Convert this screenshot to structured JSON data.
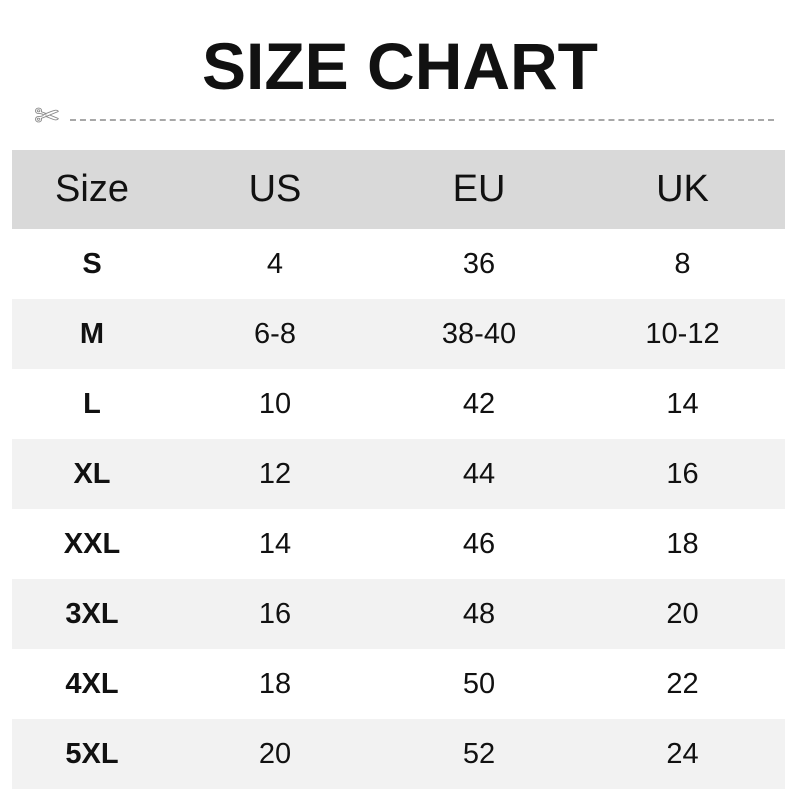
{
  "title": "SIZE CHART",
  "icons": {
    "cut": "scissors-icon"
  },
  "colors": {
    "header_bg": "#d9d9d9",
    "alt_row_bg": "#f2f2f2",
    "dash": "#a8a8a8"
  },
  "table": {
    "headers": [
      "Size",
      "US",
      "EU",
      "UK"
    ],
    "rows": [
      [
        "S",
        "4",
        "36",
        "8"
      ],
      [
        "M",
        "6-8",
        "38-40",
        "10-12"
      ],
      [
        "L",
        "10",
        "42",
        "14"
      ],
      [
        "XL",
        "12",
        "44",
        "16"
      ],
      [
        "XXL",
        "14",
        "46",
        "18"
      ],
      [
        "3XL",
        "16",
        "48",
        "20"
      ],
      [
        "4XL",
        "18",
        "50",
        "22"
      ],
      [
        "5XL",
        "20",
        "52",
        "24"
      ]
    ]
  }
}
